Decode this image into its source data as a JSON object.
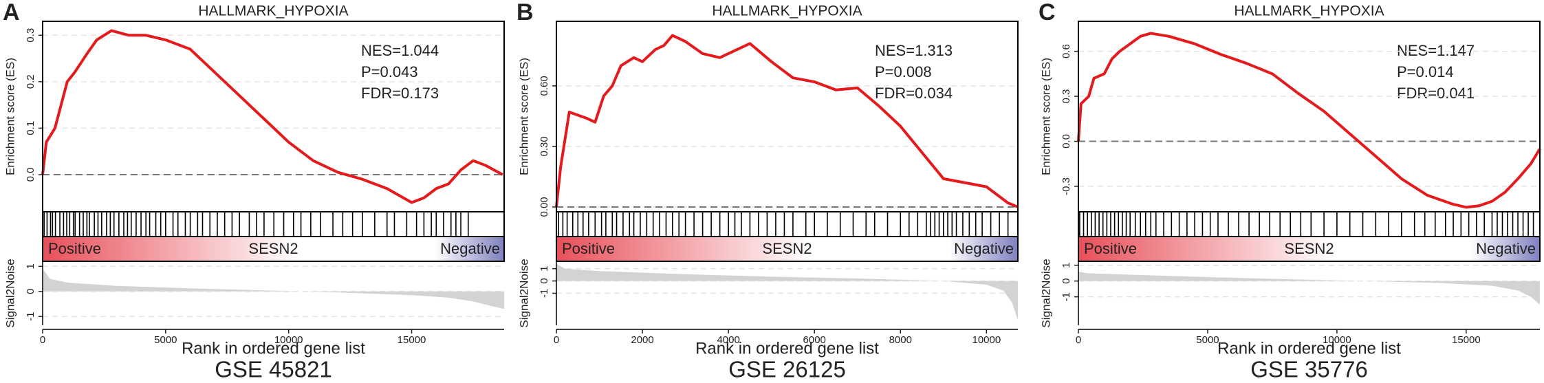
{
  "chart_data": [
    {
      "type": "line",
      "panel_label": "A",
      "title": "HALLMARK_HYPOXIA",
      "caption": "GSE 45821",
      "xlabel": "Rank in ordered gene list",
      "ylabel": "Enrichment score (ES)",
      "annotations": [
        "NES=1.044",
        "P=0.043",
        "FDR=0.173"
      ],
      "color": "#e41a1c",
      "grid": true,
      "reference_line": 0,
      "xlim": [
        0,
        18760
      ],
      "xticks": [
        0,
        5000,
        10000,
        15000
      ],
      "ylim": [
        -0.08,
        0.33
      ],
      "yticks": [
        {
          "value": 0,
          "label": "0.0"
        },
        0.1,
        0.2,
        0.3
      ],
      "x": [
        0,
        150,
        500,
        1000,
        1300,
        1800,
        2200,
        2800,
        3500,
        4200,
        5000,
        6000,
        7000,
        8000,
        9000,
        10000,
        11000,
        12000,
        13000,
        14000,
        15000,
        15500,
        16000,
        16500,
        17000,
        17500,
        18000,
        18700
      ],
      "values": [
        0.0,
        0.07,
        0.1,
        0.2,
        0.22,
        0.26,
        0.29,
        0.31,
        0.3,
        0.3,
        0.29,
        0.27,
        0.22,
        0.17,
        0.12,
        0.07,
        0.03,
        0.005,
        -0.01,
        -0.03,
        -0.06,
        -0.05,
        -0.03,
        -0.02,
        0.01,
        0.03,
        0.02,
        0.0
      ],
      "hits": [
        60,
        180,
        320,
        400,
        520,
        700,
        850,
        980,
        1100,
        1250,
        1320,
        1500,
        1650,
        1800,
        1900,
        2100,
        2250,
        2400,
        2600,
        2750,
        2900,
        3100,
        3300,
        3450,
        3600,
        3800,
        4000,
        4200,
        4350,
        4600,
        4800,
        5000,
        5300,
        5500,
        5800,
        6000,
        6300,
        6500,
        6800,
        7100,
        7400,
        7700,
        8000,
        8400,
        8700,
        9000,
        9400,
        9800,
        10200,
        10500,
        10900,
        11300,
        11800,
        12200,
        12600,
        13000,
        13500,
        14000,
        14300,
        14800,
        15200,
        15500,
        15800,
        16000,
        16300,
        16600,
        16800,
        17000,
        17300
      ],
      "ranking": {
        "name": "SESN2",
        "left": "Positive",
        "right": "Negative"
      },
      "signal": {
        "ylabel": "Signal2Noise",
        "color": "#d3d3d3",
        "ylim": [
          -1.35,
          1.2
        ],
        "yticks": [
          1,
          0,
          -1
        ],
        "x": [
          0,
          300,
          1000,
          3000,
          6000,
          9000,
          12000,
          15000,
          16500,
          17500,
          18300,
          18760
        ],
        "values": [
          0.9,
          0.5,
          0.35,
          0.22,
          0.12,
          0.04,
          -0.04,
          -0.15,
          -0.25,
          -0.4,
          -0.6,
          -0.7
        ]
      }
    },
    {
      "type": "line",
      "panel_label": "B",
      "title": "HALLMARK_HYPOXIA",
      "caption": "GSE 26125",
      "xlabel": "Rank in ordered gene list",
      "ylabel": "Enrichment score (ES)",
      "annotations": [
        "NES=1.313",
        "P=0.008",
        "FDR=0.034"
      ],
      "color": "#e41a1c",
      "grid": true,
      "reference_line": 0,
      "xlim": [
        0,
        10730
      ],
      "xticks": [
        0,
        2000,
        4000,
        6000,
        8000,
        10000
      ],
      "ylim": [
        -0.024,
        0.92
      ],
      "yticks": [
        {
          "value": 0,
          "label": "0.00"
        },
        {
          "value": 0.3,
          "label": "0.30"
        },
        {
          "value": 0.6,
          "label": "0.60"
        }
      ],
      "x": [
        0,
        100,
        300,
        700,
        900,
        1100,
        1300,
        1500,
        1800,
        2000,
        2300,
        2500,
        2700,
        3000,
        3400,
        3800,
        4200,
        4500,
        5000,
        5500,
        6000,
        6500,
        7000,
        7500,
        8000,
        8500,
        9000,
        9500,
        10000,
        10500,
        10730
      ],
      "values": [
        0.0,
        0.2,
        0.47,
        0.44,
        0.42,
        0.55,
        0.6,
        0.7,
        0.74,
        0.72,
        0.78,
        0.8,
        0.85,
        0.82,
        0.76,
        0.74,
        0.78,
        0.81,
        0.72,
        0.64,
        0.62,
        0.58,
        0.59,
        0.5,
        0.4,
        0.27,
        0.14,
        0.12,
        0.1,
        0.02,
        0.0
      ],
      "hits": [
        50,
        150,
        250,
        380,
        500,
        620,
        750,
        900,
        1050,
        1150,
        1300,
        1400,
        1550,
        1700,
        1800,
        1950,
        2100,
        2250,
        2400,
        2550,
        2700,
        2850,
        3000,
        3200,
        3400,
        3600,
        3800,
        4000,
        4150,
        4300,
        4500,
        4700,
        4900,
        5100,
        5300,
        5500,
        5800,
        6000,
        6300,
        6600,
        6900,
        7200,
        7400,
        7700,
        8000,
        8200,
        8400,
        8600,
        8700,
        8800,
        8900,
        9000,
        9100,
        9200,
        9300,
        9450,
        9600,
        9750,
        9900,
        10100,
        10300,
        10500
      ],
      "ranking": {
        "name": "SESN2",
        "left": "Positive",
        "right": "Negative"
      },
      "signal": {
        "ylabel": "Signal2Noise",
        "color": "#d3d3d3",
        "ylim": [
          -3.6,
          1.6
        ],
        "yticks": [
          1,
          0,
          -1
        ],
        "x": [
          0,
          200,
          1000,
          3000,
          5000,
          7000,
          9000,
          10000,
          10400,
          10600,
          10730
        ],
        "values": [
          1.4,
          1.0,
          0.8,
          0.55,
          0.35,
          0.2,
          0.0,
          -0.3,
          -0.8,
          -1.8,
          -3.2
        ]
      }
    },
    {
      "type": "line",
      "panel_label": "C",
      "title": "HALLMARK_HYPOXIA",
      "caption": "GSE 35776",
      "xlabel": "Rank in ordered gene list",
      "ylabel": "Enrichment score (ES)",
      "annotations": [
        "NES=1.147",
        "P=0.014",
        "FDR=0.041"
      ],
      "color": "#e41a1c",
      "grid": true,
      "reference_line": 0,
      "xlim": [
        0,
        17850
      ],
      "xticks": [
        0,
        5000,
        10000,
        15000
      ],
      "ylim": [
        -0.47,
        0.8
      ],
      "yticks": [
        -0.3,
        {
          "value": 0,
          "label": "0.0"
        },
        0.3,
        0.6
      ],
      "x": [
        0,
        100,
        400,
        600,
        1000,
        1300,
        1600,
        2000,
        2400,
        2800,
        3500,
        4500,
        5500,
        6500,
        7500,
        8500,
        9500,
        10500,
        11500,
        12500,
        13500,
        14500,
        15000,
        15500,
        16000,
        16500,
        17000,
        17500,
        17850
      ],
      "values": [
        0.0,
        0.25,
        0.3,
        0.42,
        0.45,
        0.55,
        0.6,
        0.65,
        0.7,
        0.72,
        0.7,
        0.65,
        0.58,
        0.52,
        0.45,
        0.32,
        0.2,
        0.05,
        -0.1,
        -0.25,
        -0.36,
        -0.42,
        -0.44,
        -0.43,
        -0.4,
        -0.34,
        -0.25,
        -0.15,
        -0.05
      ],
      "hits": [
        50,
        200,
        350,
        500,
        650,
        800,
        950,
        1100,
        1250,
        1400,
        1550,
        1700,
        1850,
        2000,
        2200,
        2400,
        2600,
        2800,
        3000,
        3300,
        3600,
        3900,
        4200,
        4500,
        4800,
        5100,
        5400,
        5800,
        6200,
        6600,
        7000,
        7400,
        7800,
        8200,
        8600,
        9000,
        9500,
        10000,
        10500,
        11000,
        11500,
        12000,
        12500,
        13000,
        13400,
        13800,
        14200,
        14500,
        14800,
        15100,
        15400,
        15700,
        16000,
        16200,
        16400,
        16600,
        16800,
        17000,
        17200,
        17400,
        17600
      ],
      "ranking": {
        "name": "SESN2",
        "left": "Positive",
        "right": "Negative"
      },
      "signal": {
        "ylabel": "Signal2Noise",
        "color": "#d3d3d3",
        "ylim": [
          -2.8,
          1.25
        ],
        "yticks": [
          1,
          0,
          -1
        ],
        "x": [
          0,
          300,
          2000,
          5000,
          8000,
          11000,
          14000,
          16000,
          17000,
          17500,
          17850
        ],
        "values": [
          0.6,
          0.5,
          0.4,
          0.25,
          0.12,
          0.0,
          -0.12,
          -0.3,
          -0.6,
          -1.0,
          -1.5
        ]
      }
    }
  ]
}
